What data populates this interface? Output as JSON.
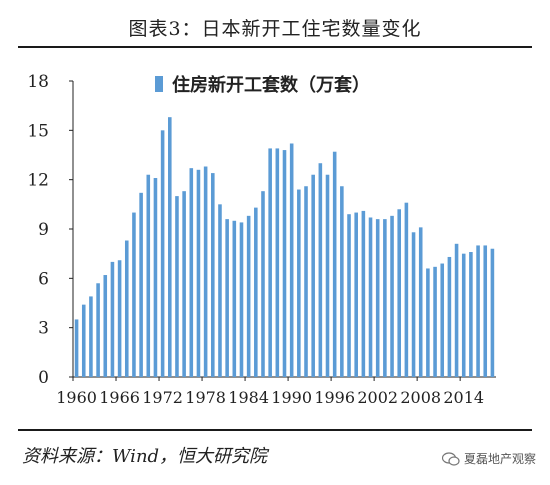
{
  "title": "图表3：日本新开工住宅数量变化",
  "source": "资料来源：Wind，恒大研究院",
  "watermark": "夏磊地产观察",
  "chart_data": {
    "type": "bar",
    "title": "",
    "xlabel": "",
    "ylabel": "",
    "ylim": [
      0,
      18
    ],
    "yticks": [
      0,
      3,
      6,
      9,
      12,
      15,
      18
    ],
    "xticks": [
      "1960",
      "1966",
      "1972",
      "1978",
      "1984",
      "1990",
      "1996",
      "2002",
      "2008",
      "2014"
    ],
    "grid": false,
    "legend_position": "top-center",
    "bar_color": "#5b9bd5",
    "series": [
      {
        "name": "住房新开工套数（万套）",
        "categories": [
          "1960",
          "1961",
          "1962",
          "1963",
          "1964",
          "1965",
          "1966",
          "1967",
          "1968",
          "1969",
          "1970",
          "1971",
          "1972",
          "1973",
          "1974",
          "1975",
          "1976",
          "1977",
          "1978",
          "1979",
          "1980",
          "1981",
          "1982",
          "1983",
          "1984",
          "1985",
          "1986",
          "1987",
          "1988",
          "1989",
          "1990",
          "1991",
          "1992",
          "1993",
          "1994",
          "1995",
          "1996",
          "1997",
          "1998",
          "1999",
          "2000",
          "2001",
          "2002",
          "2003",
          "2004",
          "2005",
          "2006",
          "2007",
          "2008",
          "2009",
          "2010",
          "2011",
          "2012",
          "2013",
          "2014",
          "2015",
          "2016",
          "2017",
          "2018"
        ],
        "values": [
          3.5,
          4.4,
          4.9,
          5.7,
          6.2,
          7.0,
          7.1,
          8.3,
          10.0,
          11.2,
          12.3,
          12.1,
          15.0,
          15.8,
          11.0,
          11.3,
          12.7,
          12.6,
          12.8,
          12.4,
          10.5,
          9.6,
          9.5,
          9.4,
          9.8,
          10.3,
          11.3,
          13.9,
          13.9,
          13.8,
          14.2,
          11.4,
          11.6,
          12.3,
          13.0,
          12.3,
          13.7,
          11.6,
          9.9,
          10.0,
          10.1,
          9.7,
          9.6,
          9.6,
          9.8,
          10.2,
          10.6,
          8.8,
          9.1,
          6.6,
          6.7,
          6.9,
          7.3,
          8.1,
          7.5,
          7.6,
          8.0,
          8.0,
          7.8
        ]
      }
    ]
  }
}
